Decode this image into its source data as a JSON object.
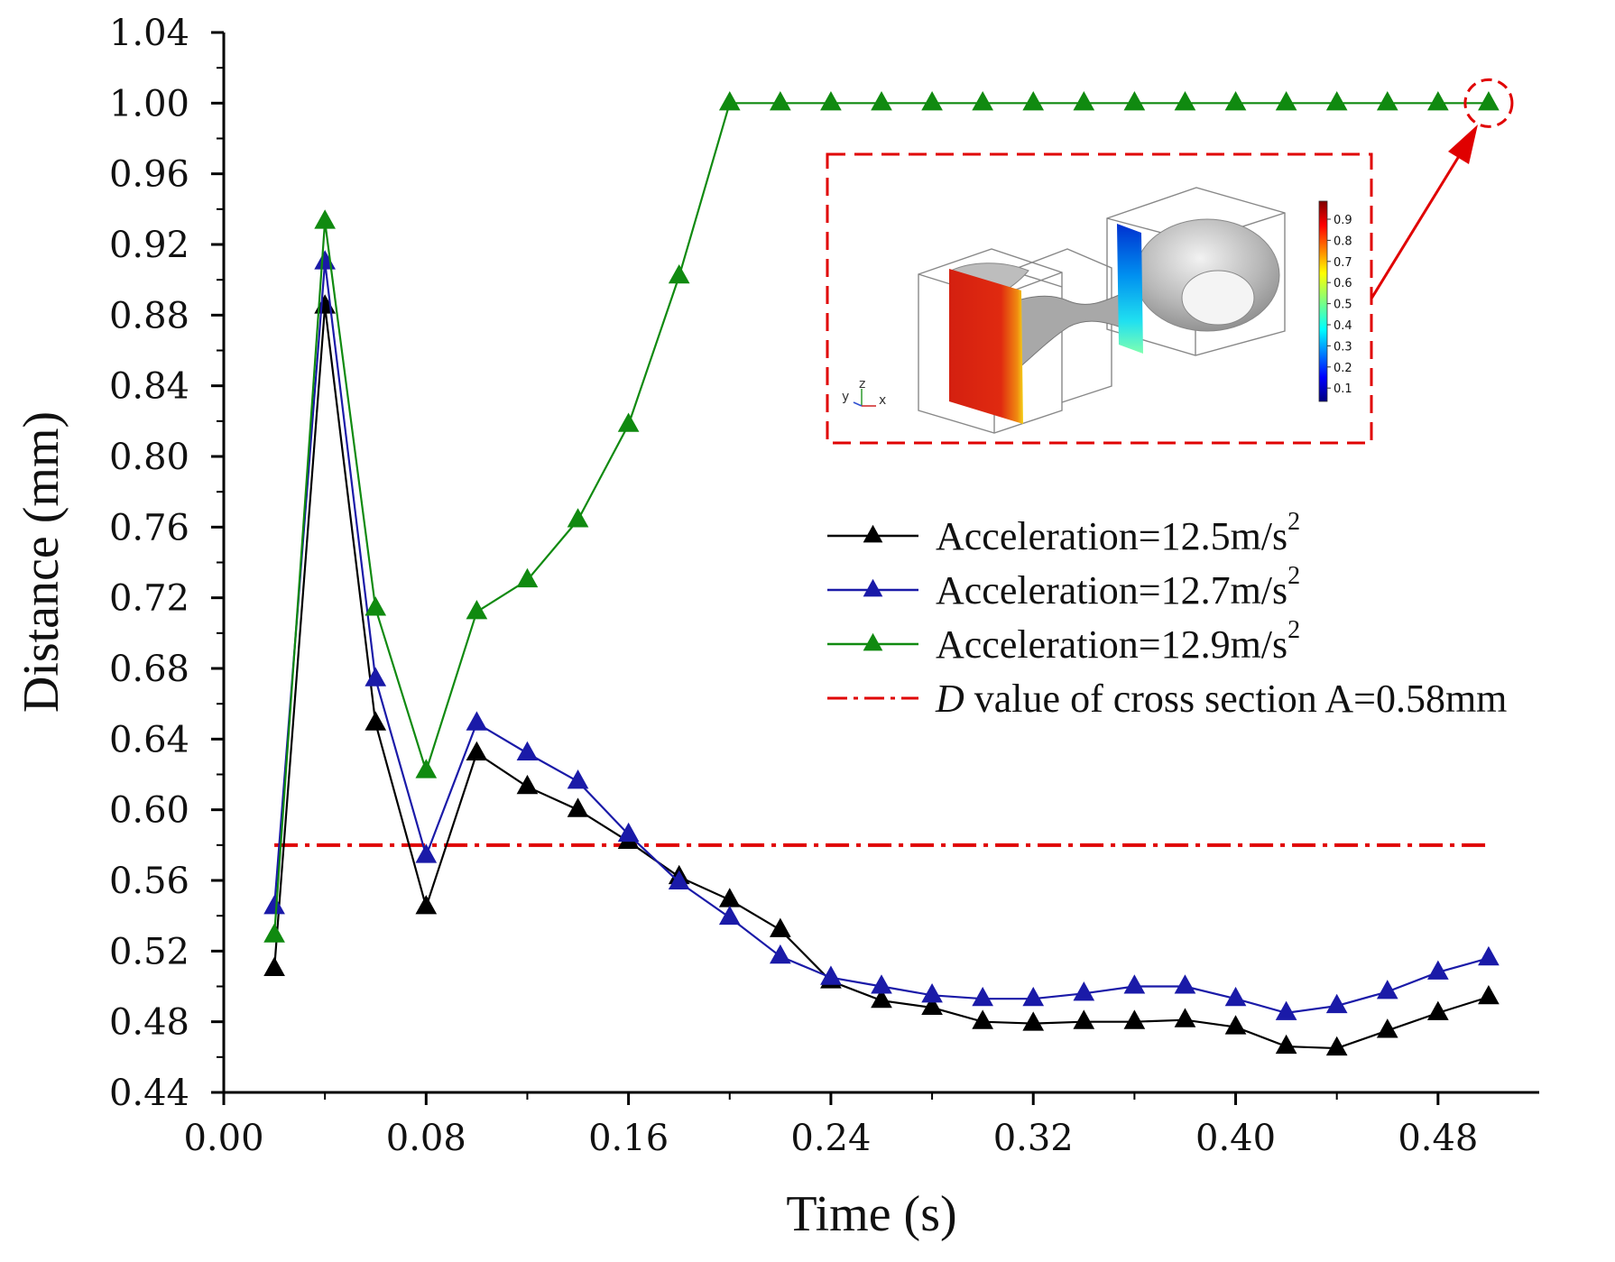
{
  "chart_data": {
    "type": "line",
    "xlabel": "Time (s)",
    "ylabel": "Distance (mm)",
    "xlim": [
      0,
      0.52
    ],
    "ylim": [
      0.44,
      1.04
    ],
    "xticks": [
      "0.00",
      "0.08",
      "0.16",
      "0.24",
      "0.32",
      "0.40",
      "0.48"
    ],
    "yticks": [
      "0.44",
      "0.48",
      "0.52",
      "0.56",
      "0.60",
      "0.64",
      "0.68",
      "0.72",
      "0.76",
      "0.80",
      "0.84",
      "0.88",
      "0.92",
      "0.96",
      "1.00",
      "1.04"
    ],
    "x": [
      0.02,
      0.04,
      0.06,
      0.08,
      0.1,
      0.12,
      0.14,
      0.16,
      0.18,
      0.2,
      0.22,
      0.24,
      0.26,
      0.28,
      0.3,
      0.32,
      0.34,
      0.36,
      0.38,
      0.4,
      0.42,
      0.44,
      0.46,
      0.48,
      0.5
    ],
    "series": [
      {
        "label": "Acceleration=12.5m/s",
        "label_sup": "2",
        "color": "#000000",
        "marker": "triangle",
        "values": [
          0.51,
          0.885,
          0.649,
          0.545,
          0.632,
          0.613,
          0.6,
          0.582,
          0.562,
          0.549,
          0.532,
          0.503,
          0.492,
          0.488,
          0.48,
          0.479,
          0.48,
          0.48,
          0.481,
          0.477,
          0.466,
          0.465,
          0.475,
          0.485,
          0.494
        ]
      },
      {
        "label": "Acceleration=12.7m/s",
        "label_sup": "2",
        "color": "#1a1aa8",
        "marker": "triangle",
        "values": [
          0.545,
          0.91,
          0.674,
          0.574,
          0.649,
          0.632,
          0.616,
          0.586,
          0.559,
          0.539,
          0.517,
          0.505,
          0.5,
          0.495,
          0.493,
          0.493,
          0.496,
          0.5,
          0.5,
          0.493,
          0.485,
          0.489,
          0.497,
          0.508,
          0.516
        ]
      },
      {
        "label": "Acceleration=12.9m/s",
        "label_sup": "2",
        "color": "#108a10",
        "marker": "triangle",
        "values": [
          0.529,
          0.933,
          0.714,
          0.622,
          0.712,
          0.73,
          0.764,
          0.818,
          0.902,
          1.0,
          1.0,
          1.0,
          1.0,
          1.0,
          1.0,
          1.0,
          1.0,
          1.0,
          1.0,
          1.0,
          1.0,
          1.0,
          1.0,
          1.0,
          1.0
        ]
      }
    ],
    "reference_line": {
      "label_italic": "D",
      "label_rest": " value of cross section A=0.58mm",
      "value": 0.58,
      "x_range": [
        0.02,
        0.5
      ],
      "color": "#e00000"
    },
    "legend_position": "right-center",
    "grid": false,
    "highlight_point": {
      "x": 0.5,
      "y": 1.0,
      "color": "#e00000"
    }
  },
  "inset": {
    "colorbar_ticks": [
      "0.9",
      "0.8",
      "0.7",
      "0.6",
      "0.5",
      "0.4",
      "0.3",
      "0.2",
      "0.1"
    ],
    "triad": {
      "y": "y",
      "z": "z",
      "x": "x"
    }
  }
}
